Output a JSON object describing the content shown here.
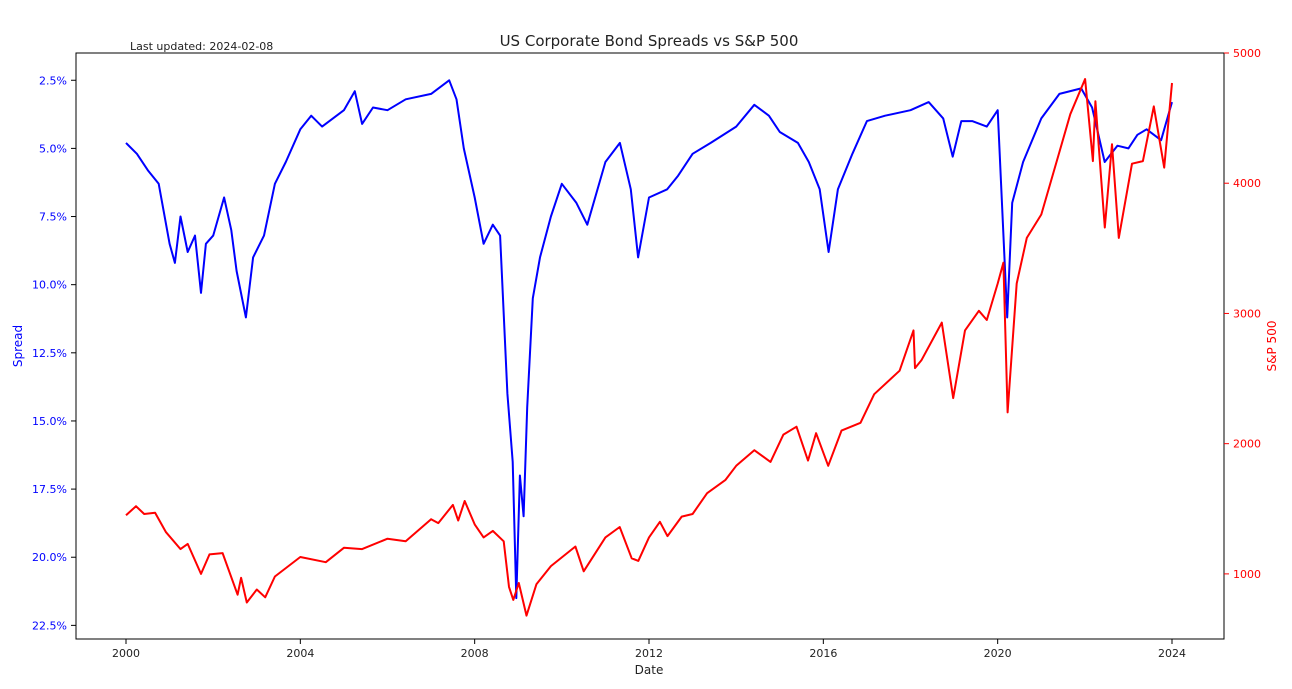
{
  "chart_data": {
    "type": "line",
    "title": "US Corporate Bond Spreads vs S&P 500",
    "annotation": "Last updated: 2024-02-08",
    "xlabel": "Date",
    "xlim": [
      2000,
      2024
    ],
    "x_ticks": [
      2000,
      2004,
      2008,
      2012,
      2016,
      2020,
      2024
    ],
    "x_tick_labels": [
      "2000",
      "2004",
      "2008",
      "2012",
      "2016",
      "2020",
      "2024"
    ],
    "grid": false,
    "y_left": {
      "label": "Spread",
      "inverted": true,
      "ylim": [
        1.5,
        23.0
      ],
      "ticks": [
        2.5,
        5.0,
        7.5,
        10.0,
        12.5,
        15.0,
        17.5,
        20.0,
        22.5
      ],
      "tick_labels": [
        "2.5%",
        "5.0%",
        "7.5%",
        "10.0%",
        "12.5%",
        "15.0%",
        "17.5%",
        "20.0%",
        "22.5%"
      ],
      "color": "#0000ff"
    },
    "y_right": {
      "label": "S&P 500",
      "ylim": [
        500,
        5000
      ],
      "ticks": [
        1000,
        2000,
        3000,
        4000,
        5000
      ],
      "tick_labels": [
        "1000",
        "2000",
        "3000",
        "4000",
        "5000"
      ],
      "color": "#ff0000"
    },
    "series": [
      {
        "name": "Spread",
        "axis": "left",
        "color": "#0000ff",
        "x": [
          "2000-01-01",
          "2000-04-01",
          "2000-07-01",
          "2000-10-01",
          "2001-01-01",
          "2001-02-15",
          "2001-04-01",
          "2001-06-01",
          "2001-08-01",
          "2001-09-21",
          "2001-11-01",
          "2002-01-01",
          "2002-04-01",
          "2002-06-01",
          "2002-07-15",
          "2002-10-01",
          "2002-12-01",
          "2003-03-01",
          "2003-06-01",
          "2003-09-01",
          "2004-01-01",
          "2004-04-01",
          "2004-07-01",
          "2005-01-01",
          "2005-04-01",
          "2005-06-01",
          "2005-09-01",
          "2006-01-01",
          "2006-06-01",
          "2007-01-01",
          "2007-06-01",
          "2007-08-01",
          "2007-10-01",
          "2008-01-01",
          "2008-03-15",
          "2008-06-01",
          "2008-08-01",
          "2008-10-01",
          "2008-11-15",
          "2008-12-15",
          "2009-01-15",
          "2009-02-15",
          "2009-03-15",
          "2009-05-01",
          "2009-07-01",
          "2009-10-01",
          "2010-01-01",
          "2010-05-01",
          "2010-08-01",
          "2011-01-01",
          "2011-05-01",
          "2011-08-01",
          "2011-10-01",
          "2012-01-01",
          "2012-06-01",
          "2012-09-01",
          "2013-01-01",
          "2013-06-01",
          "2014-01-01",
          "2014-06-01",
          "2014-10-01",
          "2015-01-01",
          "2015-06-01",
          "2015-09-01",
          "2015-12-01",
          "2016-02-15",
          "2016-05-01",
          "2016-09-01",
          "2017-01-01",
          "2017-06-01",
          "2018-01-01",
          "2018-06-01",
          "2018-10-01",
          "2018-12-20",
          "2019-03-01",
          "2019-06-01",
          "2019-10-01",
          "2020-01-01",
          "2020-03-20",
          "2020-05-01",
          "2020-08-01",
          "2021-01-01",
          "2021-06-01",
          "2021-12-01",
          "2022-03-01",
          "2022-06-15",
          "2022-09-30",
          "2023-01-01",
          "2023-03-15",
          "2023-06-01",
          "2023-10-01",
          "2023-12-31"
        ],
        "values": [
          4.8,
          5.2,
          5.8,
          6.3,
          8.5,
          9.2,
          7.5,
          8.8,
          8.2,
          10.3,
          8.5,
          8.2,
          6.8,
          8.0,
          9.5,
          11.2,
          9.0,
          8.2,
          6.3,
          5.5,
          4.3,
          3.8,
          4.2,
          3.6,
          2.9,
          4.1,
          3.5,
          3.6,
          3.2,
          3.0,
          2.5,
          3.2,
          5.0,
          6.8,
          8.5,
          7.8,
          8.2,
          14.0,
          16.5,
          21.5,
          17.0,
          18.5,
          14.5,
          10.5,
          9.0,
          7.5,
          6.3,
          7.0,
          7.8,
          5.5,
          4.8,
          6.5,
          9.0,
          6.8,
          6.5,
          6.0,
          5.2,
          4.8,
          4.2,
          3.4,
          3.8,
          4.4,
          4.8,
          5.5,
          6.5,
          8.8,
          6.5,
          5.2,
          4.0,
          3.8,
          3.6,
          3.3,
          3.9,
          5.3,
          4.0,
          4.0,
          4.2,
          3.6,
          11.2,
          7.0,
          5.5,
          3.9,
          3.0,
          2.8,
          3.5,
          5.5,
          4.9,
          5.0,
          4.5,
          4.3,
          4.7,
          3.3
        ]
      },
      {
        "name": "S&P 500",
        "axis": "right",
        "color": "#ff0000",
        "x": [
          "2000-01-01",
          "2000-03-24",
          "2000-06-01",
          "2000-09-01",
          "2000-12-01",
          "2001-04-01",
          "2001-06-01",
          "2001-09-21",
          "2001-12-01",
          "2002-03-19",
          "2002-07-23",
          "2002-08-22",
          "2002-10-09",
          "2003-01-01",
          "2003-03-11",
          "2003-06-01",
          "2004-01-01",
          "2004-08-01",
          "2005-01-01",
          "2005-06-01",
          "2006-01-01",
          "2006-06-01",
          "2007-01-01",
          "2007-03-01",
          "2007-07-01",
          "2007-08-15",
          "2007-10-09",
          "2008-01-01",
          "2008-03-15",
          "2008-06-01",
          "2008-09-01",
          "2008-10-15",
          "2008-11-20",
          "2009-01-06",
          "2009-03-09",
          "2009-06-01",
          "2009-10-01",
          "2010-04-23",
          "2010-07-02",
          "2011-01-01",
          "2011-04-29",
          "2011-08-08",
          "2011-10-03",
          "2012-01-01",
          "2012-04-01",
          "2012-06-04",
          "2012-10-01",
          "2013-01-01",
          "2013-05-01",
          "2013-10-01",
          "2014-01-01",
          "2014-06-01",
          "2014-10-15",
          "2015-02-01",
          "2015-05-20",
          "2015-08-25",
          "2015-11-01",
          "2016-02-11",
          "2016-06-01",
          "2016-11-08",
          "2017-03-01",
          "2017-10-01",
          "2018-01-26",
          "2018-02-08",
          "2018-04-01",
          "2018-09-20",
          "2018-12-24",
          "2019-04-01",
          "2019-07-26",
          "2019-10-01",
          "2020-01-01",
          "2020-02-19",
          "2020-03-23",
          "2020-06-08",
          "2020-09-02",
          "2021-01-01",
          "2021-06-01",
          "2021-09-01",
          "2022-01-03",
          "2022-03-08",
          "2022-03-29",
          "2022-06-16",
          "2022-08-16",
          "2022-10-12",
          "2023-02-01",
          "2023-05-01",
          "2023-07-31",
          "2023-10-27",
          "2023-12-31"
        ],
        "values": [
          1450,
          1520,
          1460,
          1470,
          1320,
          1190,
          1230,
          1000,
          1150,
          1160,
          840,
          970,
          780,
          880,
          820,
          980,
          1130,
          1090,
          1200,
          1190,
          1270,
          1250,
          1420,
          1390,
          1530,
          1410,
          1560,
          1380,
          1280,
          1330,
          1250,
          900,
          800,
          930,
          680,
          920,
          1060,
          1210,
          1020,
          1280,
          1360,
          1120,
          1100,
          1280,
          1400,
          1290,
          1440,
          1460,
          1620,
          1720,
          1830,
          1950,
          1860,
          2070,
          2130,
          1870,
          2080,
          1830,
          2100,
          2160,
          2380,
          2560,
          2870,
          2580,
          2640,
          2930,
          2350,
          2870,
          3020,
          2950,
          3230,
          3390,
          2240,
          3230,
          3580,
          3760,
          4240,
          4530,
          4800,
          4170,
          4630,
          3660,
          4300,
          3580,
          4150,
          4170,
          4590,
          4120,
          4770
        ]
      }
    ]
  }
}
